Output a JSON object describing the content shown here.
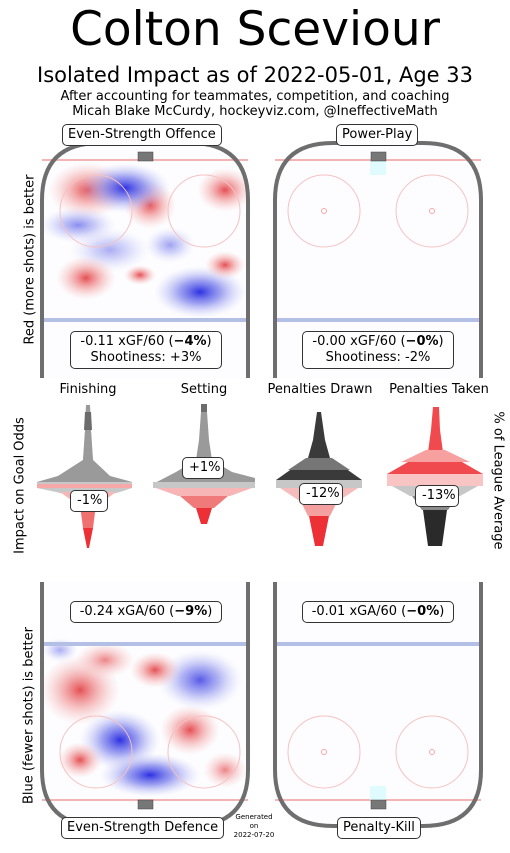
{
  "header": {
    "player_name": "Colton Sceviour",
    "subtitle": "Isolated Impact as of 2022-05-01, Age 33",
    "note_line1": "After accounting for teammates, competition, and coaching",
    "note_line2": "Micah Blake McCurdy, hockeyviz.com, @IneffectiveMath"
  },
  "rinks": {
    "ev_offence": {
      "label": "Even-Strength Offence",
      "stat_prefix": "-0.11 xGF/60 (",
      "stat_bold": "−4%",
      "stat_suffix": ")",
      "shootiness": "Shootiness: +3%"
    },
    "power_play": {
      "label": "Power-Play",
      "stat_prefix": "-0.00 xGF/60 (",
      "stat_bold": "−0%",
      "stat_suffix": ")",
      "shootiness": "Shootiness: -2%"
    },
    "ev_defence": {
      "label": "Even-Strength Defence",
      "stat_prefix": "-0.24 xGA/60 (",
      "stat_bold": "−9%",
      "stat_suffix": ")"
    },
    "penalty_kill": {
      "label": "Penalty-Kill",
      "stat_prefix": "-0.01 xGA/60 (",
      "stat_bold": "−0%",
      "stat_suffix": ")"
    }
  },
  "side_labels": {
    "top_left": "Red (more shots) is better",
    "middle_left": "Impact on Goal Odds",
    "bottom_left": "Blue (fewer shots) is better",
    "middle_right": "% of League Average"
  },
  "violins": [
    {
      "name": "Finishing",
      "value_label": "-1%",
      "value": -1,
      "tone": "grey-top"
    },
    {
      "name": "Setting",
      "value_label": "+1%",
      "value": 1,
      "tone": "grey-top"
    },
    {
      "name": "Penalties Drawn",
      "value_label": "-12%",
      "value": -12,
      "tone": "dark-top"
    },
    {
      "name": "Penalties Taken",
      "value_label": "-13%",
      "value": -13,
      "tone": "red-top"
    }
  ],
  "generated": {
    "line1": "Generated",
    "line2": "on",
    "line3": "2022-07-20"
  },
  "colors": {
    "rink_border": "#6e6e6e",
    "red_line": "#f4b4b4",
    "blue_line": "#b4bfe6",
    "shot_red": "#e8353a",
    "shot_blue": "#2d32e6",
    "crease": "#dffbff"
  }
}
